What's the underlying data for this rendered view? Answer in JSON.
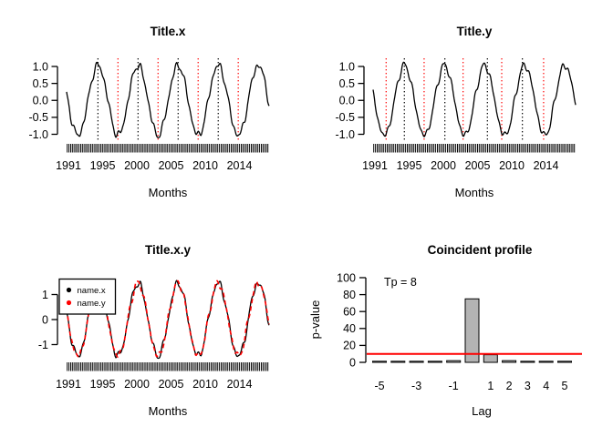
{
  "colors": {
    "background": "#ffffff",
    "series_black": "#000000",
    "series_red": "#ff0000",
    "marker_peak": "#000000",
    "marker_trough": "#ff0000",
    "bar_fill": "#b3b3b3",
    "bar_border": "#000000",
    "significance_line": "#ff0000"
  },
  "chart_data": [
    {
      "id": "title_x",
      "type": "line",
      "title": "Title.x",
      "xlabel": "Months",
      "x_tick_labels": [
        "1991",
        "1995",
        "2000",
        "2005",
        "2010",
        "2014"
      ],
      "x_range": [
        1991,
        2016
      ],
      "y_ticks": [
        -1,
        -0.5,
        0,
        0.5,
        1
      ],
      "y_tick_labels": [
        "-1.0",
        "-0.5",
        "0.0",
        "0.5",
        "1.0"
      ],
      "ylim": [
        -1.22,
        1.22
      ],
      "grid": "off",
      "rug": "monthly observation ticks 1991-2016",
      "series": [
        {
          "name": "x",
          "color": "#000000",
          "dash": "solid",
          "model": {
            "shape": "sine",
            "amplitude": 1.03,
            "period_years": 4.95,
            "peak_year": 1994.87,
            "noise": [
              [
                0.06,
                0.9,
                0.8
              ],
              [
                0.05,
                1.35,
                2.3
              ],
              [
                0.04,
                0.55,
                4.1
              ]
            ]
          }
        }
      ],
      "markers": {
        "black_dotted_peak_years": [
          1994.87,
          1999.82,
          2004.77,
          2009.72
        ],
        "red_dotted_trough_years": [
          1997.34,
          2002.29,
          2007.24,
          2012.19
        ]
      }
    },
    {
      "id": "title_y",
      "type": "line",
      "title": "Title.y",
      "xlabel": "Months",
      "x_tick_labels": [
        "1991",
        "1995",
        "2000",
        "2005",
        "2010",
        "2014"
      ],
      "x_range": [
        1991,
        2016
      ],
      "y_ticks": [
        -1,
        -0.5,
        0,
        0.5,
        1
      ],
      "y_tick_labels": [
        "-1.0",
        "-0.5",
        "0.0",
        "0.5",
        "1.0"
      ],
      "ylim": [
        -1.22,
        1.22
      ],
      "grid": "off",
      "rug": "monthly observation ticks 1991-2016",
      "series": [
        {
          "name": "y",
          "color": "#000000",
          "dash": "solid",
          "model": {
            "shape": "sine",
            "amplitude": 1.03,
            "period_years": 4.95,
            "peak_year": 1994.87,
            "noise": [
              [
                0.06,
                0.97,
                2.0
              ],
              [
                0.05,
                1.22,
                0.4
              ],
              [
                0.04,
                0.6,
                1.2
              ]
            ]
          }
        }
      ],
      "markers": {
        "black_dotted_peak_years": [
          1994.86,
          1999.86,
          2005.11,
          2009.43
        ],
        "red_dotted_trough_years": [
          1992.61,
          1997.3,
          2002.11,
          2006.88,
          2012.05
        ]
      }
    },
    {
      "id": "title_x_y",
      "type": "line",
      "title": "Title.x.y",
      "xlabel": "Months",
      "x_tick_labels": [
        "1991",
        "1995",
        "2000",
        "2005",
        "2010",
        "2014"
      ],
      "x_range": [
        1991,
        2016
      ],
      "y_ticks": [
        -1,
        0,
        1
      ],
      "y_tick_labels": [
        "-1",
        "0",
        "1"
      ],
      "ylim": [
        -1.75,
        1.75
      ],
      "grid": "off",
      "rug": "monthly observation ticks 1991-2016",
      "legend": {
        "position": "topleft",
        "items": [
          {
            "label": "name.x",
            "color": "#000000"
          },
          {
            "label": "name.y",
            "color": "#ff0000"
          }
        ]
      },
      "series": [
        {
          "name": "name.x",
          "color": "#000000",
          "dash": "solid",
          "model": {
            "shape": "sine",
            "amplitude": 1.45,
            "period_years": 4.95,
            "peak_year": 1994.87,
            "noise": [
              [
                0.08,
                0.9,
                0.8
              ],
              [
                0.07,
                1.35,
                2.3
              ],
              [
                0.05,
                0.55,
                4.1
              ]
            ]
          }
        },
        {
          "name": "name.y",
          "color": "#ff0000",
          "dash": "dashed",
          "model": {
            "shape": "sine",
            "amplitude": 1.45,
            "period_years": 4.95,
            "peak_year": 1994.87,
            "noise": [
              [
                0.08,
                0.97,
                2.0
              ],
              [
                0.07,
                1.22,
                0.4
              ],
              [
                0.05,
                0.6,
                1.2
              ]
            ]
          }
        }
      ]
    },
    {
      "id": "coincident_profile",
      "type": "bar",
      "title": "Coincident profile",
      "xlabel": "Lag",
      "ylabel": "p-value",
      "annotation": "Tp = 8",
      "categories": [
        -5,
        -4,
        -3,
        -2,
        -1,
        0,
        1,
        2,
        3,
        4,
        5
      ],
      "values": [
        1,
        1,
        1,
        1,
        2,
        75,
        9,
        2,
        1,
        1,
        1
      ],
      "x_tick_labels": [
        "-5",
        "-3",
        "-1",
        "1",
        "2",
        "3",
        "4",
        "5"
      ],
      "label_lags": [
        -5,
        -3,
        -1,
        1,
        2,
        3,
        4,
        5
      ],
      "y_ticks": [
        0,
        20,
        40,
        60,
        80,
        100
      ],
      "y_tick_labels": [
        "0",
        "20",
        "40",
        "60",
        "80",
        "100"
      ],
      "ylim": [
        0,
        100
      ],
      "grid": "off",
      "significance_line": {
        "value": 10,
        "color": "#ff0000"
      }
    }
  ]
}
